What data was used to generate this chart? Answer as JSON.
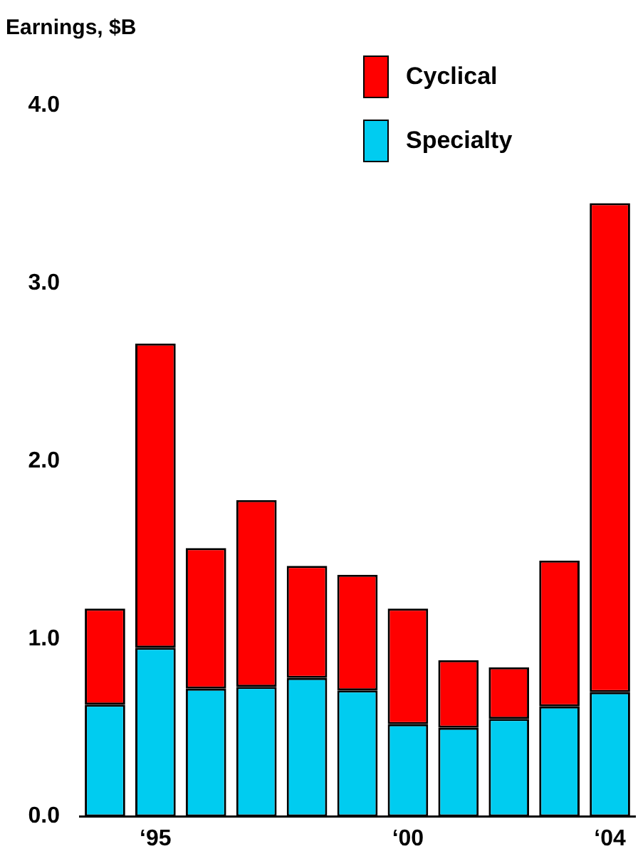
{
  "chart_data": {
    "type": "bar",
    "ylabel": "Earnings, $B",
    "categories": [
      null,
      "‘95",
      null,
      null,
      null,
      null,
      "‘00",
      null,
      null,
      null,
      "‘04"
    ],
    "series": [
      {
        "name": "Specialty",
        "color": "#00ccf0",
        "values": [
          0.63,
          0.95,
          0.72,
          0.73,
          0.78,
          0.71,
          0.52,
          0.5,
          0.55,
          0.62,
          0.7
        ]
      },
      {
        "name": "Cyclical",
        "color": "#ff0000",
        "values": [
          0.54,
          1.71,
          0.79,
          1.05,
          0.63,
          0.65,
          0.65,
          0.38,
          0.29,
          0.82,
          2.75
        ]
      }
    ],
    "stacked": true,
    "ylim": [
      0,
      4
    ],
    "yticks": [
      {
        "value": 0,
        "label": "0.0"
      },
      {
        "value": 1,
        "label": "1.0"
      },
      {
        "value": 2,
        "label": "2.0"
      },
      {
        "value": 3,
        "label": "3.0"
      },
      {
        "value": 4,
        "label": "4.0"
      }
    ],
    "grid": false,
    "legend": "top right"
  }
}
